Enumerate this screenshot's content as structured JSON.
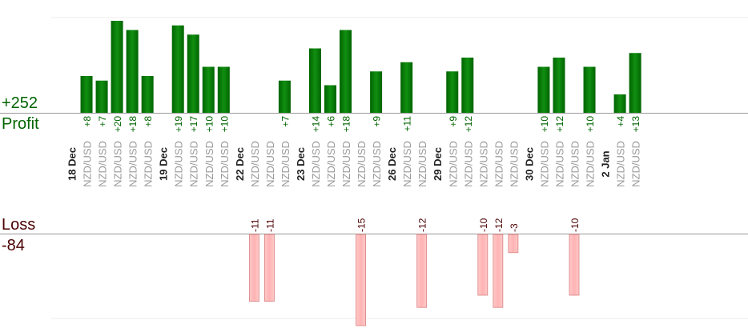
{
  "chart_data": {
    "type": "bar",
    "profit": {
      "total_label": "+252",
      "label": "Profit",
      "color": "#006400",
      "color_light": "#118f11"
    },
    "loss": {
      "total_label": "-84",
      "label": "Loss",
      "color": "#ffb3b3",
      "stroke": "#d98080",
      "text_color": "#4a0000"
    },
    "profit_ylim": [
      0,
      20
    ],
    "loss_ylim": [
      0,
      15
    ],
    "columns": [
      {
        "date": "18 Dec"
      },
      {
        "pair": "NZD/USD",
        "value": 8
      },
      {
        "pair": "NZD/USD",
        "value": 7
      },
      {
        "pair": "NZD/USD",
        "value": 20
      },
      {
        "pair": "NZD/USD",
        "value": 18
      },
      {
        "pair": "NZD/USD",
        "value": 8
      },
      {
        "date": "19 Dec"
      },
      {
        "pair": "NZD/USD",
        "value": 19
      },
      {
        "pair": "NZD/USD",
        "value": 17
      },
      {
        "pair": "NZD/USD",
        "value": 10
      },
      {
        "pair": "NZD/USD",
        "value": 10
      },
      {
        "date": "22 Dec"
      },
      {
        "pair": "NZD/USD",
        "value": -11
      },
      {
        "pair": "NZD/USD",
        "value": -11
      },
      {
        "pair": "NZD/USD",
        "value": 7
      },
      {
        "date": "23 Dec"
      },
      {
        "pair": "NZD/USD",
        "value": 14
      },
      {
        "pair": "NZD/USD",
        "value": 6
      },
      {
        "pair": "NZD/USD",
        "value": 18
      },
      {
        "pair": "NZD/USD",
        "value": -15
      },
      {
        "pair": "NZD/USD",
        "value": 9
      },
      {
        "date": "26 Dec"
      },
      {
        "pair": "NZD/USD",
        "value": 11
      },
      {
        "pair": "NZD/USD",
        "value": -12
      },
      {
        "date": "29 Dec"
      },
      {
        "pair": "NZD/USD",
        "value": 9
      },
      {
        "pair": "NZD/USD",
        "value": 12
      },
      {
        "pair": "NZD/USD",
        "value": -10
      },
      {
        "pair": "NZD/USD",
        "value": -12
      },
      {
        "pair": "NZD/USD",
        "value": -3
      },
      {
        "date": "30 Dec"
      },
      {
        "pair": "NZD/USD",
        "value": 10
      },
      {
        "pair": "NZD/USD",
        "value": 12
      },
      {
        "pair": "NZD/USD",
        "value": -10
      },
      {
        "pair": "NZD/USD",
        "value": 10
      },
      {
        "date": "2 Jan"
      },
      {
        "pair": "NZD/USD",
        "value": 4
      },
      {
        "pair": "NZD/USD",
        "value": 13
      }
    ]
  }
}
